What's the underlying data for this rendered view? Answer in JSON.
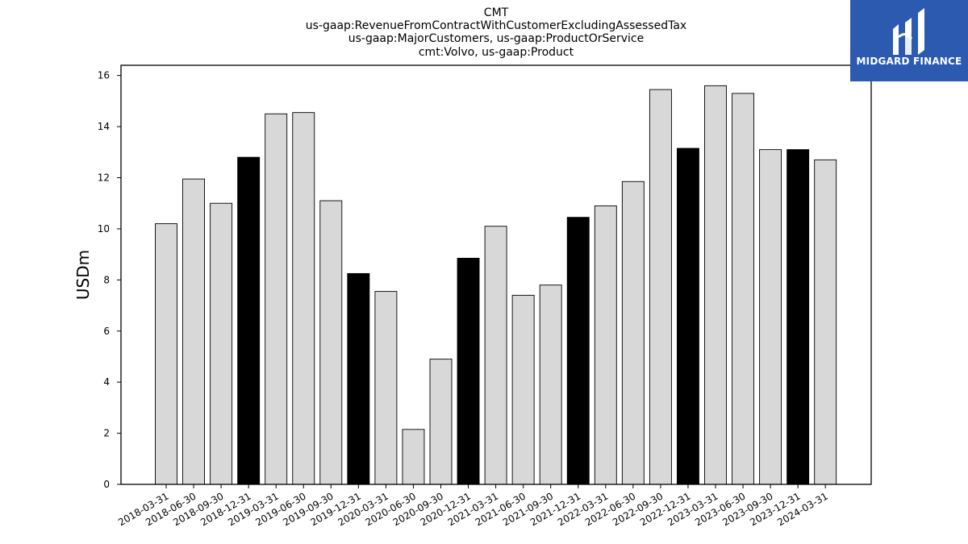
{
  "brand": {
    "name": "MIDGARD FINANCE",
    "color": "#2b5ab0"
  },
  "chart_data": {
    "type": "bar",
    "title_lines": [
      "CMT",
      "us-gaap:RevenueFromContractWithCustomerExcludingAssessedTax",
      "us-gaap:MajorCustomers, us-gaap:ProductOrService",
      "cmt:Volvo, us-gaap:Product"
    ],
    "xlabel": "",
    "ylabel": "USDm",
    "ylim": [
      0,
      16.4
    ],
    "yticks": [
      0,
      2,
      4,
      6,
      8,
      10,
      12,
      14,
      16
    ],
    "grid": false,
    "categories": [
      "2018-03-31",
      "2018-06-30",
      "2018-09-30",
      "2018-12-31",
      "2019-03-31",
      "2019-06-30",
      "2019-09-30",
      "2019-12-31",
      "2020-03-31",
      "2020-06-30",
      "2020-09-30",
      "2020-12-31",
      "2021-03-31",
      "2021-06-30",
      "2021-09-30",
      "2021-12-31",
      "2022-03-31",
      "2022-06-30",
      "2022-09-30",
      "2022-12-31",
      "2023-03-31",
      "2023-06-30",
      "2023-09-30",
      "2023-12-31",
      "2024-03-31"
    ],
    "values": [
      10.2,
      11.95,
      11.0,
      12.8,
      14.5,
      14.55,
      11.1,
      8.25,
      7.55,
      2.15,
      4.9,
      8.85,
      10.1,
      7.4,
      7.8,
      10.45,
      10.9,
      11.85,
      15.45,
      13.15,
      15.6,
      15.3,
      13.1,
      13.1,
      12.7
    ],
    "highlight_color": "#000000",
    "bar_color": "#d8d8d8",
    "highlighted": [
      false,
      false,
      false,
      true,
      false,
      false,
      false,
      true,
      false,
      false,
      false,
      true,
      false,
      false,
      false,
      true,
      false,
      false,
      false,
      true,
      false,
      false,
      false,
      true,
      false
    ]
  }
}
